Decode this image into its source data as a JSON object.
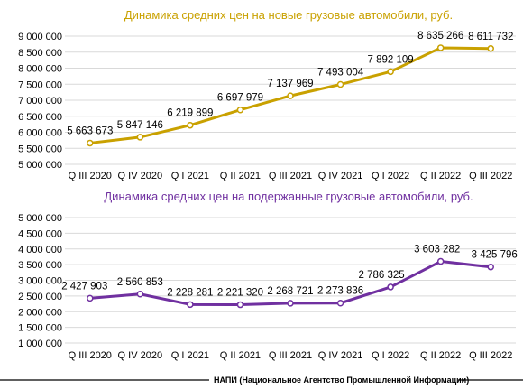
{
  "source_note": "НАПИ (Национальное Агентство Промышленной Информации)",
  "chart_data": [
    {
      "type": "line",
      "title": "Динамика средних цен на новые грузовые автомобили, руб.",
      "title_color": "#c9a100",
      "line_color": "#c9a100",
      "categories": [
        "Q III 2020",
        "Q IV 2020",
        "Q I 2021",
        "Q II 2021",
        "Q III 2021",
        "Q IV 2021",
        "Q I 2022",
        "Q II 2022",
        "Q III 2022"
      ],
      "values": [
        5663673,
        5847146,
        6219899,
        6697979,
        7137969,
        7493004,
        7892109,
        8635266,
        8611732
      ],
      "data_labels": [
        "5 663 673",
        "5 847 146",
        "6 219 899",
        "6 697 979",
        "7 137 969",
        "7 493 004",
        "7 892 109",
        "8 635 266",
        "8 611 732"
      ],
      "ylim": [
        5000000,
        9000000
      ],
      "yticks": [
        5000000,
        5500000,
        6000000,
        6500000,
        7000000,
        7500000,
        8000000,
        8500000,
        9000000
      ],
      "ytick_labels": [
        "5 000 000",
        "5 500 000",
        "6 000 000",
        "6 500 000",
        "7 000 000",
        "7 500 000",
        "8 000 000",
        "8 500 000",
        "9 000 000"
      ],
      "grid": true,
      "legend": "none"
    },
    {
      "type": "line",
      "title": "Динамика средних цен на подержанные грузовые автомобили, руб.",
      "title_color": "#7030a0",
      "line_color": "#7030a0",
      "categories": [
        "Q III 2020",
        "Q IV 2020",
        "Q I 2021",
        "Q II 2021",
        "Q III 2021",
        "Q IV 2021",
        "Q I 2022",
        "Q II 2022",
        "Q III 2022"
      ],
      "values": [
        2427903,
        2560853,
        2228281,
        2221320,
        2268721,
        2273836,
        2786325,
        3603282,
        3425796
      ],
      "data_labels": [
        "2 427 903",
        "2 560 853",
        "2 228 281",
        "2 221 320",
        "2 268 721",
        "2 273 836",
        "2 786 325",
        "3 603 282",
        "3 425 796"
      ],
      "ylim": [
        1000000,
        5000000
      ],
      "yticks": [
        1000000,
        1500000,
        2000000,
        2500000,
        3000000,
        3500000,
        4000000,
        4500000,
        5000000
      ],
      "ytick_labels": [
        "1 000 000",
        "1 500 000",
        "2 000 000",
        "2 500 000",
        "3 000 000",
        "3 500 000",
        "4 000 000",
        "4 500 000",
        "5 000 000"
      ],
      "grid": true,
      "legend": "none"
    }
  ]
}
